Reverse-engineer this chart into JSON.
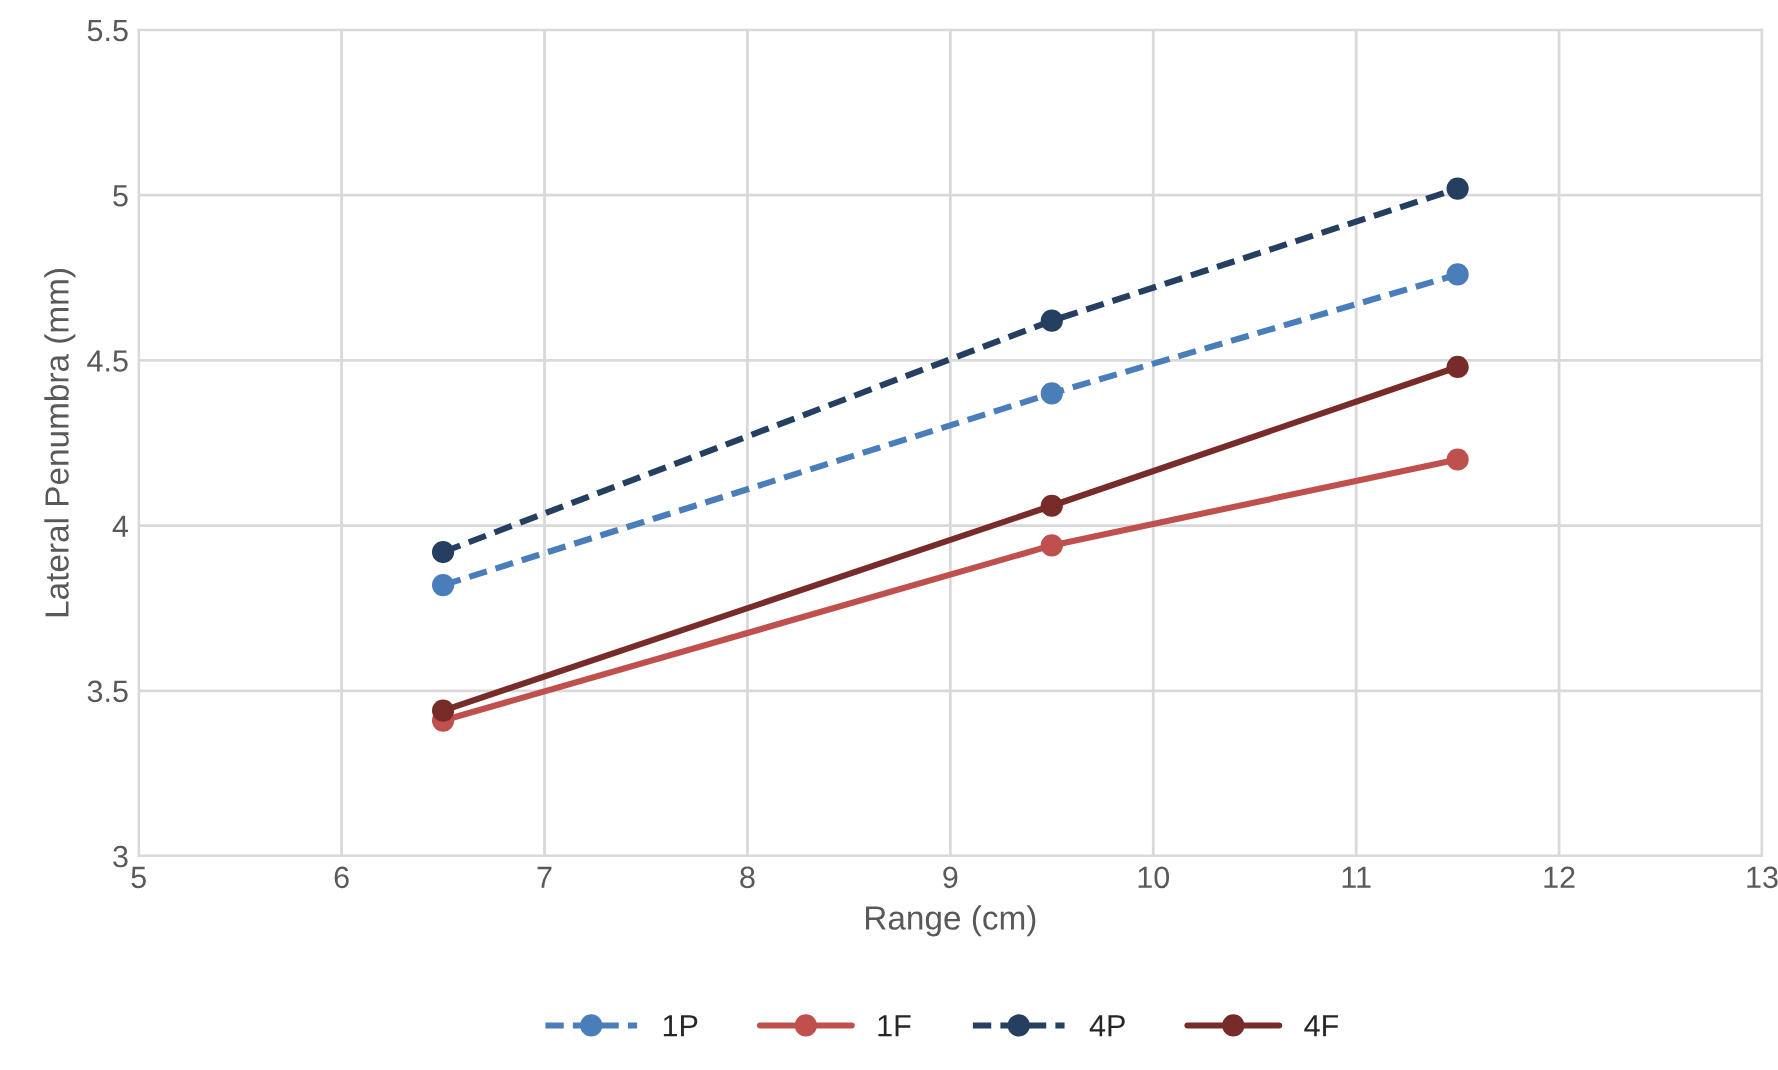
{
  "chart_data": {
    "type": "line",
    "xlabel": "Range (cm)",
    "ylabel": "Lateral Penumbra (mm)",
    "x": [
      6.5,
      9.5,
      11.5
    ],
    "series": [
      {
        "name": "1P",
        "color": "#4a7ebb",
        "line_style": "dashed",
        "values": [
          3.82,
          4.4,
          4.76
        ]
      },
      {
        "name": "1F",
        "color": "#c0504d",
        "line_style": "solid",
        "values": [
          3.41,
          3.94,
          4.2
        ]
      },
      {
        "name": "4P",
        "color": "#243f60",
        "line_style": "dashed",
        "values": [
          3.92,
          4.62,
          5.02
        ]
      },
      {
        "name": "4F",
        "color": "#772c2a",
        "line_style": "solid",
        "values": [
          3.44,
          4.06,
          4.48
        ]
      }
    ],
    "xlim": [
      5,
      13
    ],
    "xticks": [
      5,
      6,
      7,
      8,
      9,
      10,
      11,
      12,
      13
    ],
    "ylim": [
      3,
      5.5
    ],
    "yticks": [
      3,
      3.5,
      4,
      4.5,
      5,
      5.5
    ],
    "grid": true,
    "legend": "bottom",
    "marker": "circle"
  }
}
